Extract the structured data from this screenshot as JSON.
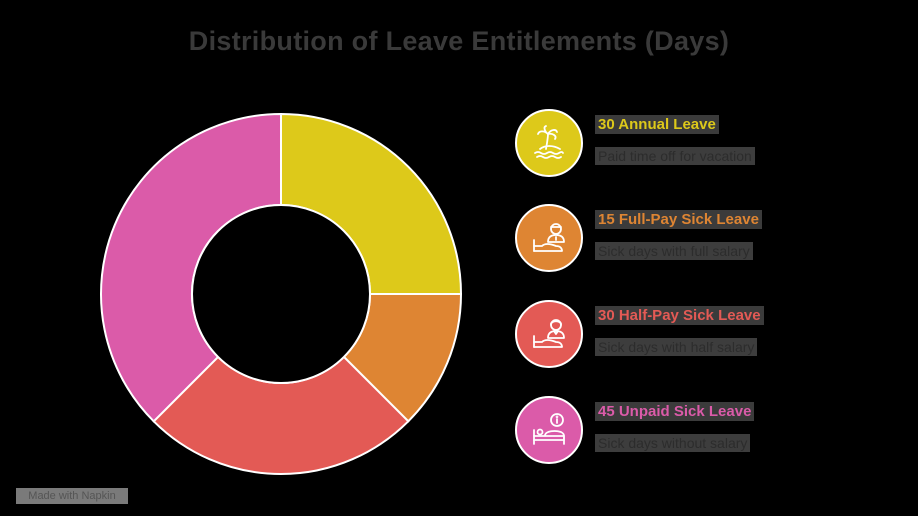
{
  "title": "Distribution of Leave Entitlements (Days)",
  "chart_data": {
    "type": "pie",
    "subtype": "donut",
    "title": "Distribution of Leave Entitlements (Days)",
    "categories": [
      "Annual Leave",
      "Full-Pay Sick Leave",
      "Half-Pay Sick Leave",
      "Unpaid Sick Leave"
    ],
    "values": [
      30,
      15,
      30,
      45
    ],
    "colors": [
      "#DDC91A",
      "#DE8533",
      "#E35A55",
      "#DB5BA9"
    ],
    "start_angle_deg": 0,
    "direction": "clockwise",
    "legend_position": "right"
  },
  "legend": [
    {
      "value": "30",
      "label": "Annual Leave",
      "heading": "30 Annual Leave",
      "description": "Paid time off for vacation",
      "color": "#DDC91A",
      "icon": "palm-tree-beach-icon"
    },
    {
      "value": "15",
      "label": "Full-Pay Sick Leave",
      "heading": "15 Full-Pay Sick Leave",
      "description": "Sick days with full salary",
      "color": "#DE8533",
      "icon": "patient-bed-doctor-icon"
    },
    {
      "value": "30",
      "label": "Half-Pay Sick Leave",
      "heading": "30 Half-Pay Sick Leave",
      "description": "Sick days with half salary",
      "color": "#E35A55",
      "icon": "patient-bed-nurse-icon"
    },
    {
      "value": "45",
      "label": "Unpaid Sick Leave",
      "heading": "45 Unpaid Sick Leave",
      "description": "Sick days without salary",
      "color": "#DB5BA9",
      "icon": "bed-info-icon"
    }
  ],
  "watermark": "Made with Napkin"
}
